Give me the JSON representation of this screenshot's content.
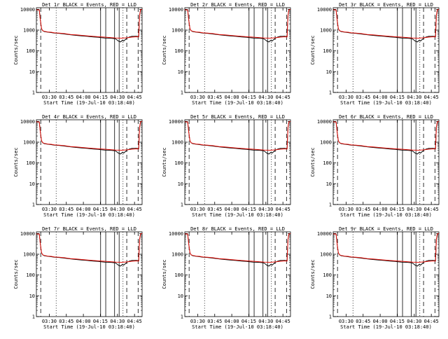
{
  "chart_data": [
    {
      "title": "Det 1r BLACK = Events, RED = LLD",
      "type": "line",
      "xlabel": "Start Time (19-Jul-10 03:18:40)",
      "ylabel": "Counts/sec"
    },
    {
      "title": "Det 2r BLACK = Events, RED = LLD",
      "type": "line",
      "xlabel": "Start Time (19-Jul-10 03:18:40)",
      "ylabel": "Counts/sec"
    },
    {
      "title": "Det 3r BLACK = Events, RED = LLD",
      "type": "line",
      "xlabel": "Start Time (19-Jul-10 03:18:40)",
      "ylabel": "Counts/sec"
    },
    {
      "title": "Det 4r BLACK = Events, RED = LLD",
      "type": "line",
      "xlabel": "Start Time (19-Jul-10 03:18:40)",
      "ylabel": "Counts/sec"
    },
    {
      "title": "Det 5r BLACK = Events, RED = LLD",
      "type": "line",
      "xlabel": "Start Time (19-Jul-10 03:18:40)",
      "ylabel": "Counts/sec"
    },
    {
      "title": "Det 6r BLACK = Events, RED = LLD",
      "type": "line",
      "xlabel": "Start Time (19-Jul-10 03:18:40)",
      "ylabel": "Counts/sec"
    },
    {
      "title": "Det 7r BLACK = Events, RED = LLD",
      "type": "line",
      "xlabel": "Start Time (19-Jul-10 03:18:40)",
      "ylabel": "Counts/sec"
    },
    {
      "title": "Det 8r BLACK = Events, RED = LLD",
      "type": "line",
      "xlabel": "Start Time (19-Jul-10 03:18:40)",
      "ylabel": "Counts/sec"
    },
    {
      "title": "Det 9r BLACK = Events, RED = LLD",
      "type": "line",
      "xlabel": "Start Time (19-Jul-10 03:18:40)",
      "ylabel": "Counts/sec"
    }
  ],
  "shared": {
    "yscale": "log",
    "ylim": [
      1,
      12000
    ],
    "xlim_minutes_after_start": [
      0,
      93
    ],
    "y_ticks": [
      {
        "value": 1,
        "label": "1"
      },
      {
        "value": 10,
        "label": "10"
      },
      {
        "value": 100,
        "label": "100"
      },
      {
        "value": 1000,
        "label": "1000"
      },
      {
        "value": 10000,
        "label": "10000"
      }
    ],
    "x_ticks": [
      {
        "value": 11.33,
        "label": "03:30"
      },
      {
        "value": 26.33,
        "label": "03:45"
      },
      {
        "value": 41.33,
        "label": "04:00"
      },
      {
        "value": 56.33,
        "label": "04:15"
      },
      {
        "value": 71.33,
        "label": "04:30"
      },
      {
        "value": 86.33,
        "label": "04:45"
      }
    ],
    "solid_lines_x": [
      56.5,
      61.0,
      68.8,
      72.8
    ],
    "dashed_lines_x": [
      3.8,
      79.5,
      89.5
    ],
    "dotted_lines_x": [
      17.4,
      76.2
    ],
    "black_events": [
      [
        0,
        9500
      ],
      [
        2.5,
        9400
      ],
      [
        3.5,
        3000
      ],
      [
        4.5,
        1200
      ],
      [
        5.5,
        950
      ],
      [
        7,
        850
      ],
      [
        10,
        800
      ],
      [
        13,
        760
      ],
      [
        16,
        720
      ],
      [
        20,
        700
      ],
      [
        25,
        650
      ],
      [
        30,
        600
      ],
      [
        35,
        560
      ],
      [
        40,
        530
      ],
      [
        45,
        500
      ],
      [
        50,
        470
      ],
      [
        55,
        450
      ],
      [
        56.5,
        440
      ],
      [
        60,
        420
      ],
      [
        65,
        410
      ],
      [
        68.8,
        390
      ],
      [
        70,
        370
      ],
      [
        72,
        300
      ],
      [
        74,
        270
      ],
      [
        75.5,
        320
      ],
      [
        76.8,
        300
      ],
      [
        78,
        340
      ],
      [
        80,
        420
      ],
      [
        82,
        470
      ],
      [
        84,
        500
      ],
      [
        86,
        500
      ],
      [
        88,
        510
      ],
      [
        90,
        480
      ],
      [
        90.8,
        5000
      ],
      [
        91.6,
        9500
      ],
      [
        93,
        10000
      ]
    ],
    "red_lld": [
      [
        0,
        9500
      ],
      [
        2.5,
        9400
      ],
      [
        3.5,
        3000
      ],
      [
        4.5,
        1200
      ],
      [
        5.5,
        950
      ],
      [
        7,
        880
      ],
      [
        10,
        820
      ],
      [
        13,
        790
      ],
      [
        16,
        740
      ],
      [
        20,
        720
      ],
      [
        25,
        680
      ],
      [
        30,
        620
      ],
      [
        35,
        590
      ],
      [
        40,
        560
      ],
      [
        45,
        530
      ],
      [
        50,
        500
      ],
      [
        55,
        480
      ],
      [
        60,
        460
      ],
      [
        65,
        440
      ],
      [
        70,
        420
      ],
      [
        75,
        410
      ],
      [
        80,
        430
      ],
      [
        84,
        460
      ],
      [
        88,
        480
      ],
      [
        90,
        470
      ],
      [
        90.8,
        5000
      ],
      [
        91.6,
        9500
      ],
      [
        93,
        10000
      ]
    ]
  }
}
